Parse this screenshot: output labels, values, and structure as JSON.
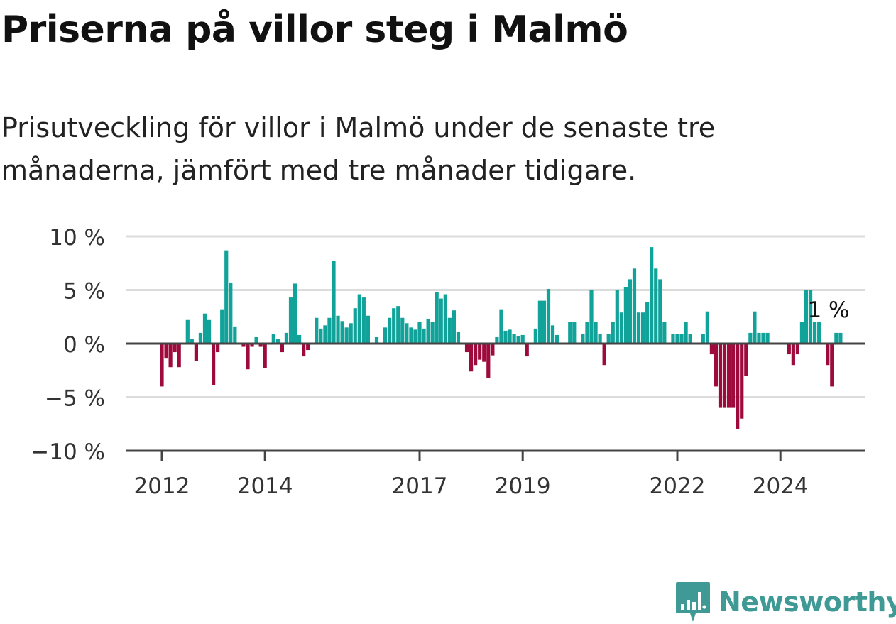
{
  "header": {
    "title": "Priserna på villor steg i Malmö",
    "subtitle": "Prisutveckling för villor i Malmö under de senaste tre månaderna, jämfört med tre månader tidigare."
  },
  "brand": {
    "name": "Newsworthy",
    "logo_icon": "bar-chart-badge-icon",
    "color": "#3f9a95"
  },
  "chart_data": {
    "type": "bar",
    "x_start": "2012-01",
    "x_end": "2025-01",
    "x_ticks": [
      {
        "date": "2012-01",
        "label": "2012"
      },
      {
        "date": "2014-01",
        "label": "2014"
      },
      {
        "date": "2017-01",
        "label": "2017"
      },
      {
        "date": "2019-01",
        "label": "2019"
      },
      {
        "date": "2022-01",
        "label": "2022"
      },
      {
        "date": "2024-01",
        "label": "2024"
      }
    ],
    "y_ticks": [
      {
        "value": 10,
        "label": "10 %"
      },
      {
        "value": 5,
        "label": "5 %"
      },
      {
        "value": 0,
        "label": "0 %"
      },
      {
        "value": -5,
        "label": "−5 %"
      },
      {
        "value": -10,
        "label": "−10 %"
      }
    ],
    "ylim": [
      -10,
      10
    ],
    "grid": true,
    "positive_color": "#11a29a",
    "negative_color": "#9e0a3c",
    "series": [
      {
        "values": [
          -4,
          -1.4,
          -2.2,
          -0.8,
          -2.2,
          0,
          2.2,
          0.4,
          -1.6,
          1,
          2.8,
          2.2,
          -3.9,
          -0.8,
          3.2,
          8.7,
          5.7,
          1.6,
          0,
          -0.3,
          -2.4,
          -0.3,
          0.6,
          -0.3,
          -2.3,
          0,
          0.9,
          0.4,
          -0.8,
          1,
          4.3,
          5.6,
          0.8,
          -1.2,
          -0.6,
          0,
          2.4,
          1.4,
          1.7,
          2.4,
          7.7,
          2.6,
          2.1,
          1.5,
          1.9,
          3.3,
          4.6,
          4.3,
          2.6,
          0,
          0.6,
          0,
          1.5,
          2.4,
          3.3,
          3.5,
          2.4,
          1.9,
          1.5,
          1.3,
          2,
          1.4,
          2.3,
          2,
          4.8,
          4.2,
          4.6,
          2.4,
          3.1,
          1.1,
          0,
          -0.8,
          -2.6,
          -2,
          -1.5,
          -1.7,
          -3.2,
          -1.1,
          0.6,
          3.2,
          1.2,
          1.3,
          0.9,
          0.7,
          0.8,
          -1.2,
          0,
          1.4,
          4,
          4,
          5.1,
          1.7,
          0.8,
          0,
          0,
          2,
          2,
          0,
          0.9,
          2,
          5,
          2,
          0.9,
          -2,
          0.9,
          2,
          5,
          2.9,
          5.3,
          6,
          7,
          2.9,
          2.9,
          3.9,
          9,
          7,
          6,
          2,
          0,
          0.9,
          0.9,
          0.9,
          2,
          0.9,
          0,
          0,
          0.9,
          3,
          -1,
          -4,
          -6,
          -6,
          -6,
          -6,
          -8,
          -7,
          -3,
          1,
          3,
          1,
          1,
          1,
          0,
          0,
          0,
          0,
          -1,
          -2,
          -1,
          2,
          5,
          5,
          2,
          2,
          0,
          -2,
          -4,
          1,
          1
        ]
      }
    ],
    "annotations": [
      {
        "label": "1 %",
        "value": 1
      }
    ]
  }
}
